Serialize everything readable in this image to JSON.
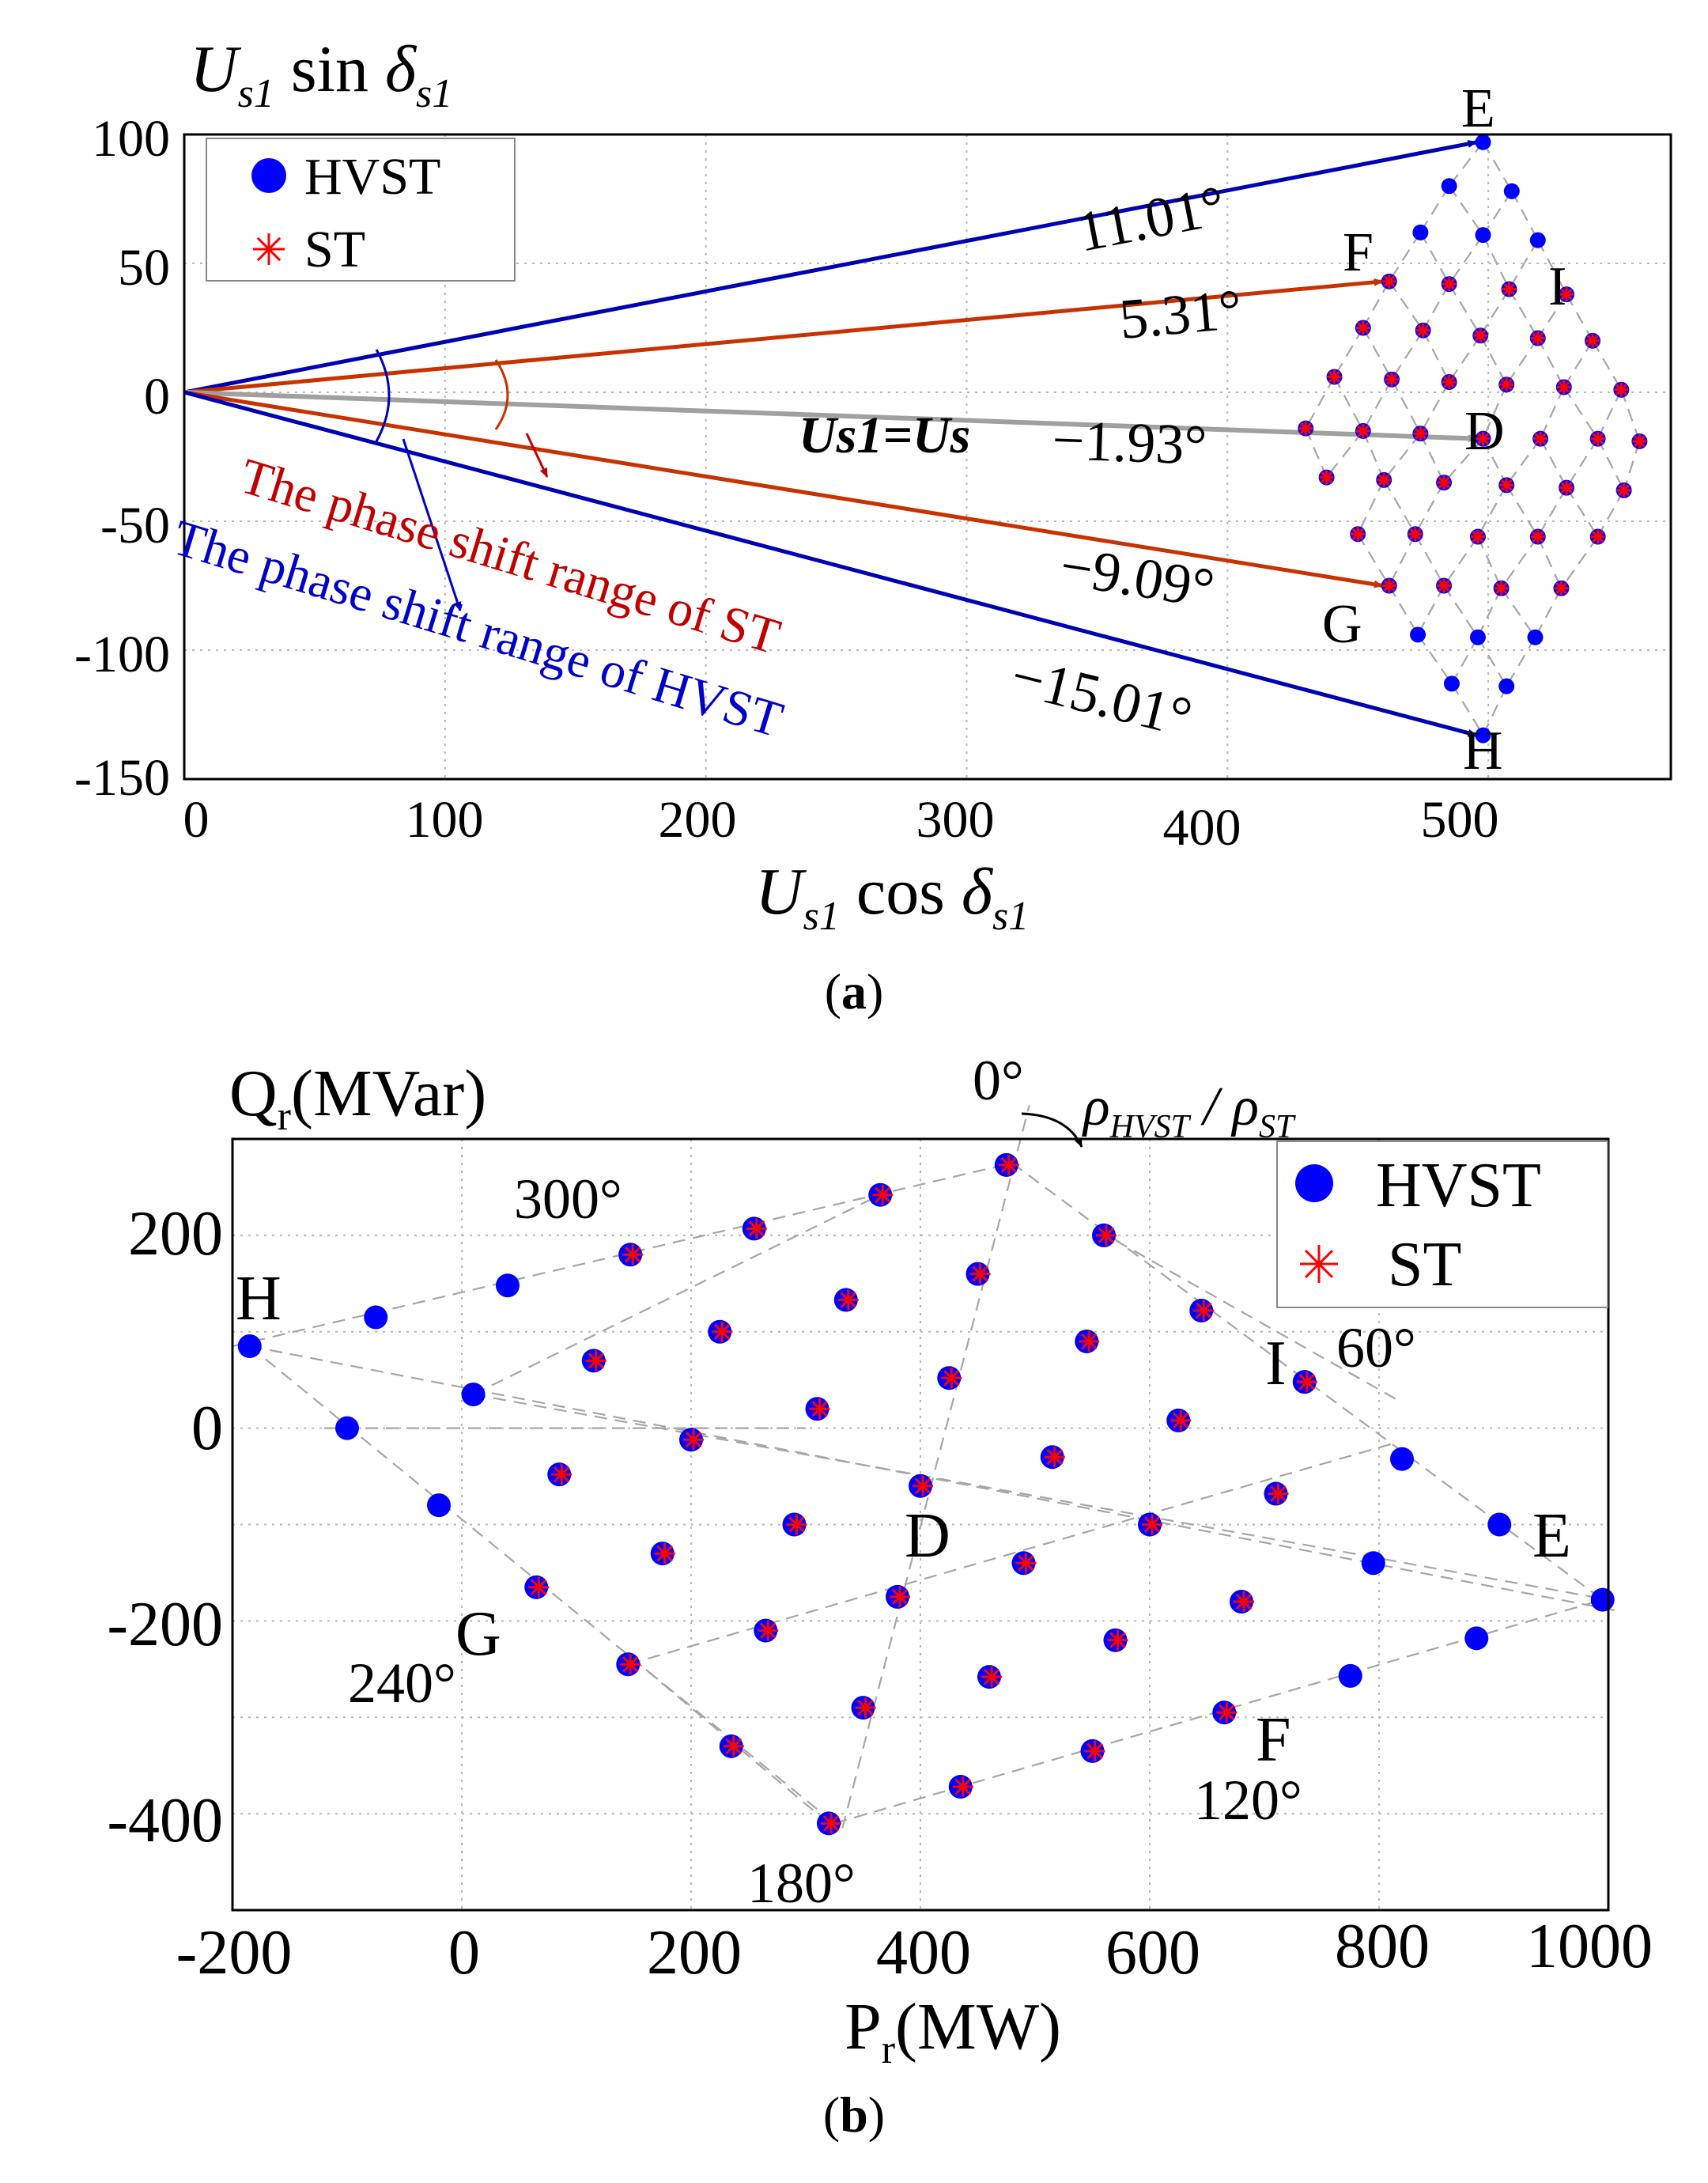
{
  "figure": {
    "caption_a": "a",
    "caption_b": "b"
  },
  "chart_data": [
    {
      "id": "a",
      "type": "scatter",
      "caption": "a",
      "ylabel_parts": [
        "U",
        "s1",
        " sin ",
        "δ",
        "s1"
      ],
      "xlabel_parts": [
        "U",
        "s1",
        " cos ",
        "δ",
        "s1"
      ],
      "xlim": [
        0,
        570
      ],
      "ylim": [
        -150,
        100
      ],
      "xticks": [
        0,
        100,
        200,
        300,
        400,
        500
      ],
      "yticks": [
        100,
        50,
        0,
        -50,
        -100,
        -150
      ],
      "xtick_labels": [
        "0",
        "100",
        "200",
        "300",
        "400",
        "500"
      ],
      "ytick_labels": [
        "100",
        "50",
        "0",
        "-50",
        "-100",
        "-150"
      ],
      "grid": true,
      "legend": {
        "position": "top-left",
        "entries": [
          {
            "name": "HVST",
            "marker": "circle",
            "color": "#0000ff"
          },
          {
            "name": "ST",
            "marker": "asterisk",
            "color": "#ff0000"
          }
        ]
      },
      "vectors": [
        {
          "name": "E",
          "angle_label": "11.01°",
          "to": [
            498,
            97
          ],
          "color": "#0000b4"
        },
        {
          "name": "F",
          "angle_label": "5.31°",
          "to": [
            462,
            43
          ],
          "color": "#c83200"
        },
        {
          "name": "D",
          "angle_label": "−1.93°",
          "to": [
            498,
            -18
          ],
          "color": "#a0a0a0",
          "vector_label": "Us1=Us"
        },
        {
          "name": "G",
          "angle_label": "−9.09°",
          "to": [
            462,
            -75
          ],
          "color": "#c83200"
        },
        {
          "name": "H",
          "angle_label": "−15.01°",
          "to": [
            498,
            -133
          ],
          "color": "#0000b4"
        }
      ],
      "point_labels": [
        {
          "text": "E",
          "at": [
            498,
            97
          ]
        },
        {
          "text": "F",
          "at": [
            462,
            43
          ]
        },
        {
          "text": "I",
          "at": [
            534,
            39
          ]
        },
        {
          "text": "D",
          "at": [
            498,
            -18
          ]
        },
        {
          "text": "G",
          "at": [
            462,
            -75
          ]
        },
        {
          "text": "H",
          "at": [
            498,
            -133
          ]
        }
      ],
      "annotations": [
        {
          "text": "The phase shift range of ST",
          "color": "#c00000"
        },
        {
          "text": "The phase shift range of HVST",
          "color": "#0000c8"
        }
      ],
      "series": [
        {
          "name": "HVST",
          "note": "rhombus lattice; E, F, D, G, H vertices",
          "points": [
            [
              498,
              97
            ],
            [
              485,
              80
            ],
            [
              509,
              78
            ],
            [
              474,
              62
            ],
            [
              498,
              61
            ],
            [
              519,
              59
            ],
            [
              462,
              43
            ],
            [
              485,
              42
            ],
            [
              508,
              40
            ],
            [
              530,
              38
            ],
            [
              452,
              25
            ],
            [
              475,
              24
            ],
            [
              497,
              22
            ],
            [
              519,
              21
            ],
            [
              540,
              20
            ],
            [
              441,
              6
            ],
            [
              463,
              5
            ],
            [
              485,
              4
            ],
            [
              507,
              3
            ],
            [
              529,
              2
            ],
            [
              551,
              1
            ],
            [
              430,
              -14
            ],
            [
              452,
              -15
            ],
            [
              474,
              -16
            ],
            [
              498,
              -18
            ],
            [
              520,
              -18
            ],
            [
              542,
              -18
            ],
            [
              558,
              -19
            ],
            [
              438,
              -33
            ],
            [
              460,
              -34
            ],
            [
              483,
              -35
            ],
            [
              507,
              -36
            ],
            [
              530,
              -37
            ],
            [
              552,
              -38
            ],
            [
              450,
              -55
            ],
            [
              472,
              -55
            ],
            [
              496,
              -56
            ],
            [
              519,
              -56
            ],
            [
              542,
              -56
            ],
            [
              462,
              -75
            ],
            [
              483,
              -75
            ],
            [
              505,
              -76
            ],
            [
              528,
              -76
            ],
            [
              473,
              -94
            ],
            [
              496,
              -95
            ],
            [
              518,
              -95
            ],
            [
              486,
              -113
            ],
            [
              507,
              -114
            ],
            [
              498,
              -133
            ]
          ]
        },
        {
          "name": "ST",
          "points": [
            [
              462,
              43
            ],
            [
              485,
              42
            ],
            [
              508,
              40
            ],
            [
              530,
              38
            ],
            [
              452,
              25
            ],
            [
              475,
              24
            ],
            [
              497,
              22
            ],
            [
              519,
              21
            ],
            [
              540,
              20
            ],
            [
              441,
              6
            ],
            [
              463,
              5
            ],
            [
              485,
              4
            ],
            [
              507,
              3
            ],
            [
              529,
              2
            ],
            [
              551,
              1
            ],
            [
              430,
              -14
            ],
            [
              452,
              -15
            ],
            [
              474,
              -16
            ],
            [
              498,
              -18
            ],
            [
              520,
              -18
            ],
            [
              542,
              -18
            ],
            [
              558,
              -19
            ],
            [
              438,
              -33
            ],
            [
              460,
              -34
            ],
            [
              483,
              -35
            ],
            [
              507,
              -36
            ],
            [
              530,
              -37
            ],
            [
              552,
              -38
            ],
            [
              450,
              -55
            ],
            [
              472,
              -55
            ],
            [
              496,
              -56
            ],
            [
              519,
              -56
            ],
            [
              542,
              -56
            ],
            [
              462,
              -75
            ],
            [
              483,
              -75
            ],
            [
              505,
              -76
            ],
            [
              528,
              -76
            ]
          ]
        }
      ]
    },
    {
      "id": "b",
      "type": "scatter",
      "caption": "b",
      "ylabel_parts": [
        "Q",
        "r",
        "(MVar)"
      ],
      "xlabel_parts": [
        "P",
        "r",
        "(MW)"
      ],
      "xlim": [
        -200,
        1000
      ],
      "ylim": [
        -500,
        300
      ],
      "xticks": [
        -200,
        0,
        200,
        400,
        600,
        800,
        1000
      ],
      "yticks": [
        200,
        0,
        -200,
        -400
      ],
      "xtick_labels": [
        "-200",
        "0",
        "200",
        "400",
        "600",
        "800",
        "1000"
      ],
      "ytick_labels": [
        "200",
        "0",
        "-200",
        "-400"
      ],
      "grid": true,
      "legend": {
        "position": "top-right",
        "entries": [
          {
            "name": "HVST",
            "marker": "circle",
            "color": "#0000ff"
          },
          {
            "name": "ST",
            "marker": "asterisk",
            "color": "#ff0000"
          }
        ]
      },
      "rho_label_parts": [
        "ρ",
        "HVST",
        " / ",
        "ρ",
        "ST"
      ],
      "angle_labels": [
        {
          "text": "0°",
          "at": [
            470,
            345
          ]
        },
        {
          "text": "60°",
          "at": [
            760,
            60
          ]
        },
        {
          "text": "120°",
          "at": [
            690,
            -380
          ]
        },
        {
          "text": "180°",
          "at": [
            320,
            -460
          ]
        },
        {
          "text": "240°",
          "at": [
            100,
            -260
          ]
        },
        {
          "text": "300°",
          "at": [
            100,
            235
          ]
        }
      ],
      "point_labels": [
        {
          "text": "H",
          "at": [
            -188,
            130
          ]
        },
        {
          "text": "I",
          "at": [
            718,
            40
          ]
        },
        {
          "text": "D",
          "at": [
            405,
            -110
          ]
        },
        {
          "text": "E",
          "at": [
            910,
            -110
          ]
        },
        {
          "text": "G",
          "at": [
            45,
            -205
          ]
        },
        {
          "text": "F",
          "at": [
            685,
            -320
          ]
        }
      ],
      "wire_lines": [
        [
          [
            -200,
            85
          ],
          [
            480,
            275
          ]
        ],
        [
          [
            -185,
            85
          ],
          [
            1010,
            -190
          ]
        ],
        [
          [
            -185,
            85
          ],
          [
            325,
            -410
          ]
        ],
        [
          [
            480,
            275
          ],
          [
            995,
            -178
          ]
        ],
        [
          [
            325,
            -410
          ],
          [
            995,
            -178
          ]
        ],
        [
          [
            332,
            -415
          ],
          [
            495,
            335
          ]
        ],
        [
          [
            10,
            35
          ],
          [
            370,
            245
          ]
        ],
        [
          [
            10,
            35
          ],
          [
            1000,
            -178
          ]
        ],
        [
          [
            -120,
            0
          ],
          [
            300,
            0
          ]
        ],
        [
          [
            145,
            -245
          ],
          [
            815,
            -15
          ]
        ],
        [
          [
            320,
            -410
          ],
          [
            150,
            -240
          ]
        ],
        [
          [
            555,
            205
          ],
          [
            815,
            30
          ]
        ]
      ],
      "series": [
        {
          "name": "HVST",
          "points": [
            [
              -185,
              85
            ],
            [
              -75,
              115
            ],
            [
              40,
              148
            ],
            [
              147,
              180
            ],
            [
              255,
              207
            ],
            [
              365,
              242
            ],
            [
              475,
              273
            ],
            [
              -100,
              0
            ],
            [
              10,
              35
            ],
            [
              115,
              70
            ],
            [
              225,
              100
            ],
            [
              335,
              133
            ],
            [
              450,
              160
            ],
            [
              560,
              200
            ],
            [
              -20,
              -80
            ],
            [
              85,
              -48
            ],
            [
              200,
              -12
            ],
            [
              310,
              20
            ],
            [
              425,
              52
            ],
            [
              545,
              90
            ],
            [
              645,
              122
            ],
            [
              65,
              -165
            ],
            [
              175,
              -130
            ],
            [
              290,
              -100
            ],
            [
              400,
              -60
            ],
            [
              515,
              -30
            ],
            [
              625,
              8
            ],
            [
              735,
              48
            ],
            [
              145,
              -245
            ],
            [
              265,
              -210
            ],
            [
              380,
              -175
            ],
            [
              490,
              -140
            ],
            [
              600,
              -100
            ],
            [
              710,
              -68
            ],
            [
              820,
              -32
            ],
            [
              235,
              -330
            ],
            [
              350,
              -290
            ],
            [
              460,
              -258
            ],
            [
              570,
              -220
            ],
            [
              680,
              -180
            ],
            [
              795,
              -140
            ],
            [
              905,
              -100
            ],
            [
              320,
              -410
            ],
            [
              435,
              -372
            ],
            [
              550,
              -335
            ],
            [
              665,
              -295
            ],
            [
              775,
              -257
            ],
            [
              885,
              -218
            ],
            [
              995,
              -178
            ]
          ]
        },
        {
          "name": "ST",
          "points": [
            [
              147,
              180
            ],
            [
              255,
              207
            ],
            [
              365,
              242
            ],
            [
              475,
              273
            ],
            [
              115,
              70
            ],
            [
              225,
              100
            ],
            [
              335,
              133
            ],
            [
              450,
              160
            ],
            [
              560,
              200
            ],
            [
              85,
              -48
            ],
            [
              200,
              -12
            ],
            [
              310,
              20
            ],
            [
              425,
              52
            ],
            [
              545,
              90
            ],
            [
              645,
              122
            ],
            [
              65,
              -165
            ],
            [
              175,
              -130
            ],
            [
              290,
              -100
            ],
            [
              400,
              -60
            ],
            [
              515,
              -30
            ],
            [
              625,
              8
            ],
            [
              735,
              48
            ],
            [
              145,
              -245
            ],
            [
              265,
              -210
            ],
            [
              380,
              -175
            ],
            [
              490,
              -140
            ],
            [
              600,
              -100
            ],
            [
              710,
              -68
            ],
            [
              235,
              -330
            ],
            [
              350,
              -290
            ],
            [
              460,
              -258
            ],
            [
              570,
              -220
            ],
            [
              680,
              -180
            ],
            [
              320,
              -410
            ],
            [
              435,
              -372
            ],
            [
              550,
              -335
            ],
            [
              665,
              -295
            ]
          ]
        }
      ]
    }
  ]
}
